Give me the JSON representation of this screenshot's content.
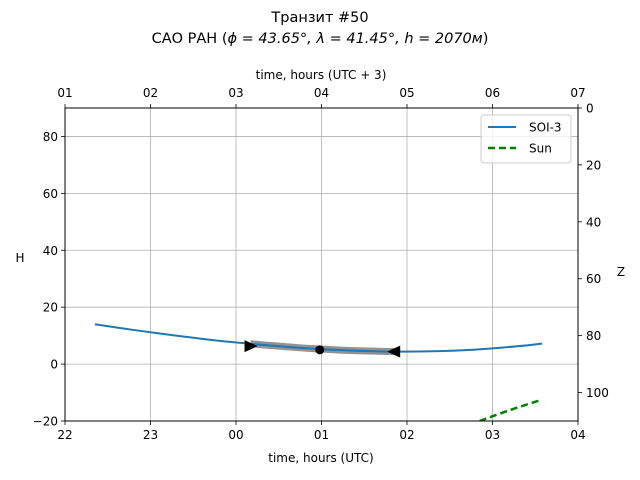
{
  "chart_data": {
    "type": "line",
    "title": "Транзит #50",
    "subtitle_prefix": "САО РАН (",
    "subtitle_math": "ϕ = 43.65°, λ = 41.45°, h = 2070м",
    "subtitle_suffix": ")",
    "subtitle": "САО РАН (ϕ = 43.65°, λ = 41.45°, h = 2070м)",
    "xlabel": "time, hours (UTC)",
    "xlabel_top": "time, hours (UTC + 3)",
    "ylabel": "H",
    "ylabel_right": "Z",
    "xlim_hours_from_22utc": [
      0,
      6
    ],
    "ylim": [
      -20,
      90
    ],
    "ylim_right": [
      0,
      110
    ],
    "x_tick_labels": [
      "22",
      "23",
      "00",
      "01",
      "02",
      "03",
      "04"
    ],
    "x_tick_labels_top": [
      "01",
      "02",
      "03",
      "04",
      "05",
      "06",
      "07"
    ],
    "y_ticks": [
      -20,
      0,
      20,
      40,
      60,
      80
    ],
    "y_tick_labels": [
      "−20",
      "0",
      "20",
      "40",
      "60",
      "80"
    ],
    "y_ticks_right": [
      0,
      20,
      40,
      60,
      80,
      100
    ],
    "y_tick_labels_right": [
      "0",
      "20",
      "40",
      "60",
      "80",
      "100"
    ],
    "grid": true,
    "legend_position": "top-right",
    "colors": {
      "soi": "#1f77b4",
      "sun": "#008000",
      "transit_band": "#7f7f7f",
      "markers": "#000000",
      "grid": "#b0b0b0"
    },
    "series": [
      {
        "name": "SOI-3",
        "style": "solid",
        "x": [
          0.35,
          0.8,
          1.3,
          1.8,
          2.3,
          2.8,
          3.3,
          3.8,
          4.3,
          4.8,
          5.3,
          5.58
        ],
        "y": [
          14.0,
          12.0,
          10.0,
          8.2,
          6.8,
          5.6,
          4.8,
          4.4,
          4.5,
          5.1,
          6.3,
          7.2
        ]
      },
      {
        "name": "Sun",
        "style": "dashed",
        "x": [
          4.85,
          5.2,
          5.58
        ],
        "y": [
          -20.0,
          -16.2,
          -12.5
        ]
      }
    ],
    "transit_segment": {
      "x_start": 2.17,
      "x_end": 3.85,
      "start_marker": {
        "x": 2.17,
        "y": 6.3,
        "shape": "triangle-right"
      },
      "mid_marker": {
        "x": 2.98,
        "y": 5.0,
        "shape": "circle"
      },
      "end_marker": {
        "x": 3.85,
        "y": 4.4,
        "shape": "triangle-left"
      }
    }
  }
}
